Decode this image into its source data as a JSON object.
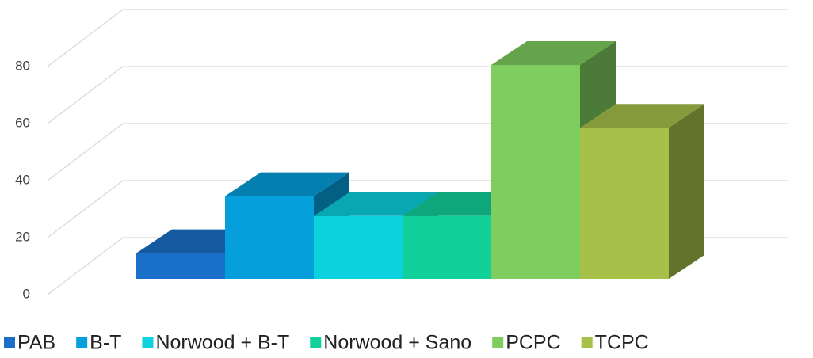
{
  "chart_data": {
    "type": "bar3d",
    "series": [
      {
        "name": "PAB",
        "color": "#1a6fc9",
        "values": [
          9
        ]
      },
      {
        "name": "B-T",
        "color": "#05a0dc",
        "values": [
          29
        ]
      },
      {
        "name": "Norwood + B-T",
        "color": "#0bd2dc",
        "values": [
          22
        ]
      },
      {
        "name": "Norwood + Sano",
        "color": "#12d09a",
        "values": [
          22
        ]
      },
      {
        "name": "PCPC",
        "color": "#7fcd5f",
        "values": [
          75
        ]
      },
      {
        "name": "TCPC",
        "color": "#a6c04a",
        "values": [
          53
        ]
      }
    ],
    "ylim": [
      0,
      80
    ],
    "yticks": [
      0,
      20,
      40,
      60,
      80
    ],
    "grid": true,
    "legend": "bottom"
  }
}
